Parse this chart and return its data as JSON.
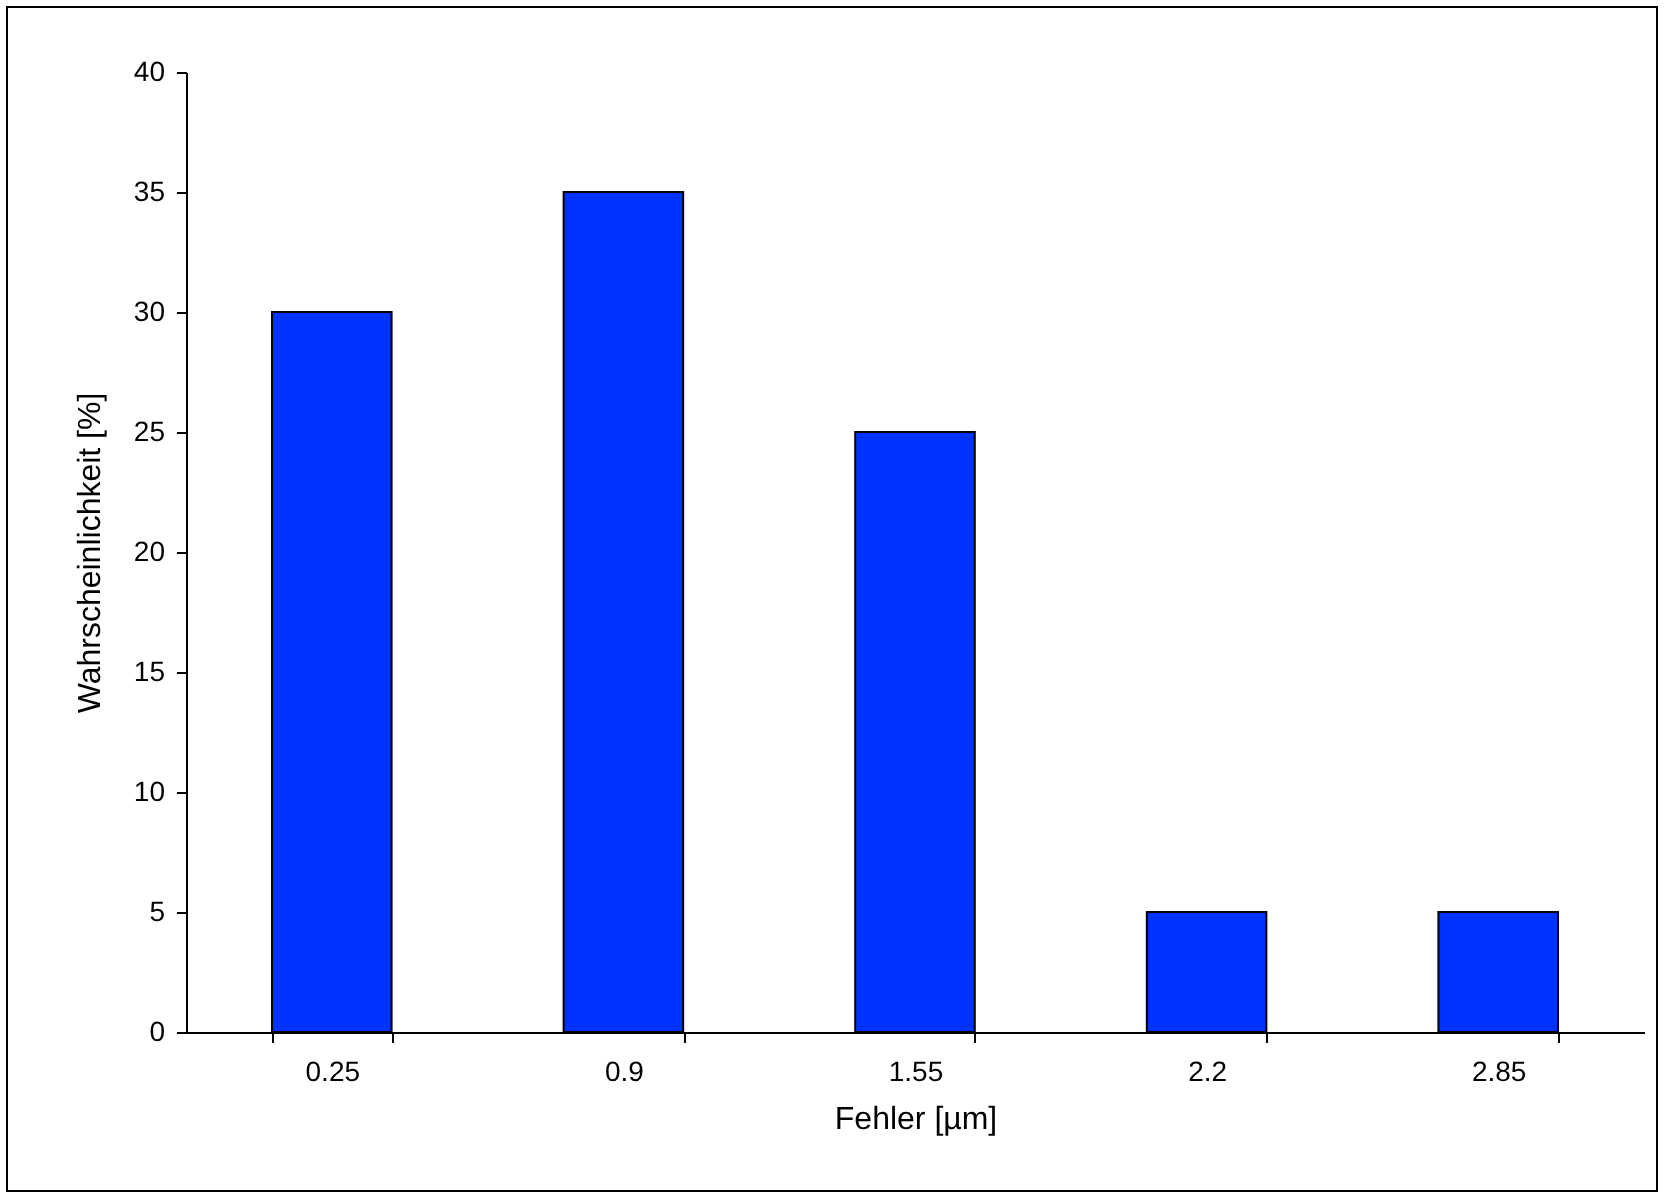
{
  "chart_data": {
    "type": "bar",
    "xlabel": "Fehler [µm]",
    "ylabel": "Wahrscheinlichkeit [%]",
    "categories": [
      "0.25",
      "0.9",
      "1.55",
      "2.2",
      "2.85"
    ],
    "values": [
      30,
      35,
      25,
      5,
      5
    ],
    "color": "#0033ff",
    "ylim": [
      0,
      40
    ],
    "yticks": [
      0,
      5,
      10,
      15,
      20,
      25,
      30,
      35,
      40
    ],
    "grid": false
  }
}
